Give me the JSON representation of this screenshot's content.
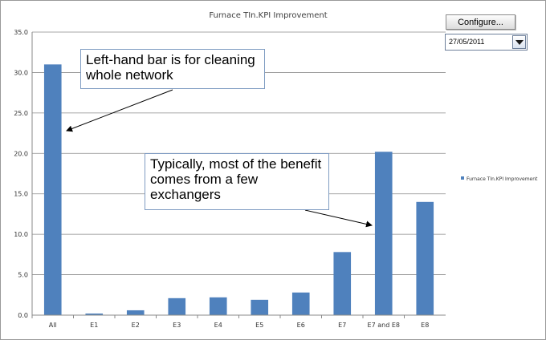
{
  "chart_controls": {
    "configure_label": "Configure...",
    "date_value": "27/05/2011"
  },
  "callouts": {
    "first": "Left-hand bar is for cleaning whole network",
    "second": "Typically, most of the benefit comes from a few exchangers"
  },
  "colors": {
    "bar": "#4f81bd",
    "grid": "#8a8a8a",
    "arrow": "#000000"
  },
  "chart_data": {
    "type": "bar",
    "title": "Furnace TIn.KPI Improvement",
    "categories": [
      "All",
      "E1",
      "E2",
      "E3",
      "E4",
      "E5",
      "E6",
      "E7",
      "E7 and  E8",
      "E8"
    ],
    "series": [
      {
        "name": "Furnace TIn.KPI Improvement",
        "values": [
          31.0,
          0.2,
          0.6,
          2.1,
          2.2,
          1.9,
          2.8,
          7.8,
          20.2,
          14.0
        ]
      }
    ],
    "ylim": [
      0,
      35
    ],
    "yticks": [
      "0.0",
      "5.0",
      "10.0",
      "15.0",
      "20.0",
      "25.0",
      "30.0",
      "35.0"
    ],
    "grid": true,
    "legend_position": "right"
  }
}
